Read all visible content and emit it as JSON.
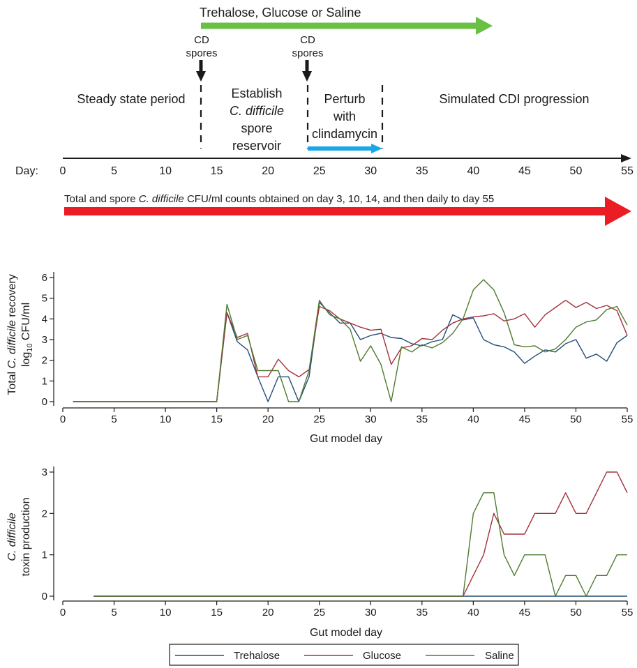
{
  "timeline": {
    "treatment_label": "Trehalose, Glucose or Saline",
    "spores_1": [
      "CD",
      "spores"
    ],
    "spores_2": [
      "CD",
      "spores"
    ],
    "phase_steady": "Steady state period",
    "phase_reservoir": [
      "Establish",
      "C. difficile",
      "spore",
      "reservoir"
    ],
    "phase_perturb": [
      "Perturb",
      "with",
      "clindamycin"
    ],
    "phase_cdi": "Simulated CDI progression",
    "day_label": "Day:",
    "day_ticks": [
      0,
      5,
      10,
      15,
      20,
      25,
      30,
      35,
      40,
      45,
      50,
      55
    ],
    "counts_note_pre": "Total and spore ",
    "counts_note_italic": "C. difficile",
    "counts_note_post": " CFU/ml counts obtained on day 3, 10, 14, and then daily to day 55",
    "colors": {
      "treatment_arrow": "#6abf45",
      "clindamycin_arrow": "#1aa7e6",
      "counts_arrow": "#ec1c24"
    }
  },
  "chart_data": [
    {
      "type": "line",
      "ylabel_line1_pre": "Total ",
      "ylabel_line1_italic": "C. difficile",
      "ylabel_line1_post": " recovery",
      "ylabel_line2_pre": "log",
      "ylabel_line2_sub": "10",
      "ylabel_line2_post": " CFU/ml",
      "xlabel": "Gut model day",
      "xlim": [
        0,
        55
      ],
      "ylim": [
        0,
        6
      ],
      "xticks": [
        0,
        5,
        10,
        15,
        20,
        25,
        30,
        35,
        40,
        45,
        50,
        55
      ],
      "yticks": [
        0,
        1,
        2,
        3,
        4,
        5,
        6
      ],
      "x": [
        1,
        15,
        16,
        17,
        18,
        19,
        20,
        21,
        22,
        23,
        24,
        25,
        26,
        27,
        28,
        29,
        30,
        31,
        32,
        33,
        34,
        35,
        36,
        37,
        38,
        39,
        40,
        41,
        42,
        43,
        44,
        45,
        46,
        47,
        48,
        49,
        50,
        51,
        52,
        53,
        54,
        55
      ],
      "series": [
        {
          "name": "Trehalose",
          "color": "#1f4e79",
          "values": [
            0,
            0,
            4.3,
            2.9,
            2.5,
            1.2,
            0,
            1.2,
            1.2,
            0,
            1.2,
            4.8,
            4.3,
            3.8,
            3.8,
            3.0,
            3.2,
            3.3,
            3.1,
            3.05,
            2.8,
            2.7,
            2.9,
            3.0,
            4.2,
            3.95,
            4.05,
            3.0,
            2.75,
            2.65,
            2.4,
            1.85,
            2.2,
            2.5,
            2.4,
            2.8,
            3.0,
            2.1,
            2.3,
            1.95,
            2.85,
            3.2
          ]
        },
        {
          "name": "Glucose",
          "color": "#a3303a",
          "values": [
            0,
            0,
            4.3,
            3.1,
            3.3,
            1.2,
            1.2,
            2.05,
            1.5,
            1.2,
            1.55,
            4.6,
            4.4,
            4.0,
            3.8,
            3.6,
            3.45,
            3.5,
            1.8,
            2.6,
            2.7,
            3.05,
            3.0,
            3.45,
            3.8,
            4.0,
            4.1,
            4.15,
            4.25,
            3.9,
            4.0,
            4.25,
            3.6,
            4.2,
            4.55,
            4.9,
            4.55,
            4.8,
            4.5,
            4.65,
            4.4,
            3.2
          ]
        },
        {
          "name": "Saline",
          "color": "#4e7a2f",
          "values": [
            0,
            0,
            4.7,
            3.0,
            3.2,
            1.5,
            1.5,
            1.5,
            0,
            0,
            1.5,
            4.9,
            4.2,
            4.0,
            3.5,
            1.95,
            2.7,
            1.8,
            0,
            2.65,
            2.4,
            2.75,
            2.6,
            2.85,
            3.3,
            4.0,
            5.4,
            5.9,
            5.4,
            4.3,
            2.75,
            2.65,
            2.7,
            2.4,
            2.55,
            3.0,
            3.6,
            3.85,
            3.95,
            4.45,
            4.6,
            3.7
          ]
        }
      ]
    },
    {
      "type": "line",
      "ylabel_line1_italic": "C. difficile",
      "ylabel_line2": "toxin production",
      "xlabel": "Gut model day",
      "xlim": [
        0,
        55
      ],
      "ylim": [
        0,
        3
      ],
      "xticks": [
        0,
        5,
        10,
        15,
        20,
        25,
        30,
        35,
        40,
        45,
        50,
        55
      ],
      "yticks": [
        0,
        1,
        2,
        3
      ],
      "series": [
        {
          "name": "Trehalose",
          "color": "#1f4e79",
          "x": [
            3,
            55
          ],
          "values": [
            0,
            0
          ]
        },
        {
          "name": "Glucose",
          "color": "#a3303a",
          "x": [
            3,
            39,
            40,
            41,
            42,
            43,
            44,
            45,
            46,
            47,
            48,
            49,
            50,
            51,
            52,
            53,
            54,
            55
          ],
          "values": [
            0,
            0,
            0.5,
            1.0,
            2.0,
            1.5,
            1.5,
            1.5,
            2.0,
            2.0,
            2.0,
            2.5,
            2.0,
            2.0,
            2.5,
            3.0,
            3.0,
            2.5
          ]
        },
        {
          "name": "Saline",
          "color": "#4e7a2f",
          "x": [
            3,
            39,
            40,
            41,
            42,
            43,
            44,
            45,
            46,
            47,
            48,
            49,
            50,
            51,
            52,
            53,
            54,
            55
          ],
          "values": [
            0,
            0,
            2.0,
            2.5,
            2.5,
            1.0,
            0.5,
            1.0,
            1.0,
            1.0,
            0,
            0.5,
            0.5,
            0,
            0.5,
            0.5,
            1.0,
            1.0
          ]
        }
      ]
    }
  ],
  "legend": [
    {
      "name": "Trehalose",
      "color": "#1f4e79"
    },
    {
      "name": "Glucose",
      "color": "#a3303a"
    },
    {
      "name": "Saline",
      "color": "#4e7a2f"
    }
  ]
}
